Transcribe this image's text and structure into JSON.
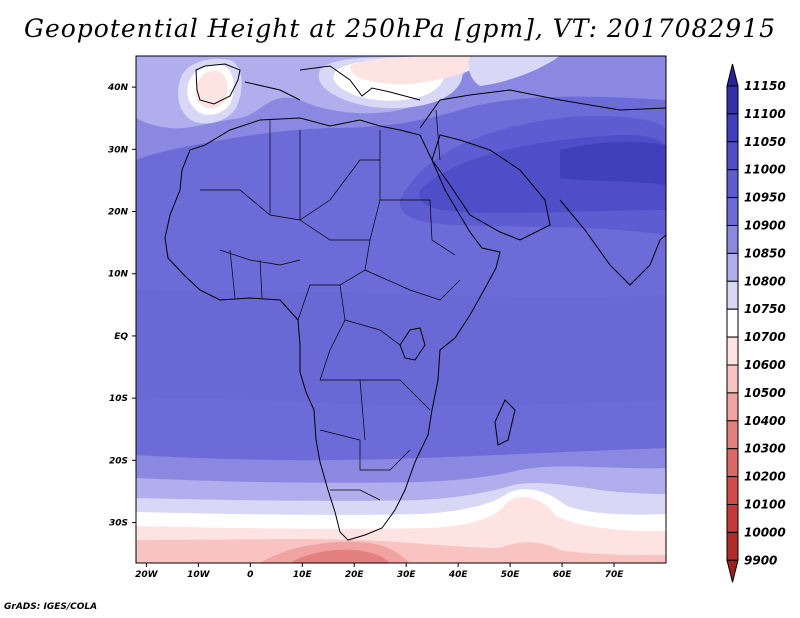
{
  "title": "Geopotential Height at 250hPa [gpm], VT: 2017082915",
  "credit": "GrADS: IGES/COLA",
  "map": {
    "lon_range": [
      -22,
      80
    ],
    "lat_range": [
      -36.5,
      45
    ],
    "lon_ticks": [
      {
        "value": -20,
        "label": "20W"
      },
      {
        "value": -10,
        "label": "10W"
      },
      {
        "value": 0,
        "label": "0"
      },
      {
        "value": 10,
        "label": "10E"
      },
      {
        "value": 20,
        "label": "20E"
      },
      {
        "value": 30,
        "label": "30E"
      },
      {
        "value": 40,
        "label": "40E"
      },
      {
        "value": 50,
        "label": "50E"
      },
      {
        "value": 60,
        "label": "60E"
      },
      {
        "value": 70,
        "label": "70E"
      }
    ],
    "lat_ticks": [
      {
        "value": 40,
        "label": "40N"
      },
      {
        "value": 30,
        "label": "30N"
      },
      {
        "value": 20,
        "label": "20N"
      },
      {
        "value": 10,
        "label": "10N"
      },
      {
        "value": 0,
        "label": "EQ"
      },
      {
        "value": -10,
        "label": "10S"
      },
      {
        "value": -20,
        "label": "20S"
      },
      {
        "value": -30,
        "label": "30S"
      }
    ],
    "colorbar": [
      {
        "label": "11150",
        "color": "#28249a"
      },
      {
        "label": "11100",
        "color": "#3430ac"
      },
      {
        "label": "11050",
        "color": "#4040bd"
      },
      {
        "label": "11000",
        "color": "#4f4ec8"
      },
      {
        "label": "10950",
        "color": "#5e5cd1"
      },
      {
        "label": "10900",
        "color": "#6d6bd7"
      },
      {
        "label": "10850",
        "color": "#8a88e0"
      },
      {
        "label": "10800",
        "color": "#b0aeed"
      },
      {
        "label": "10750",
        "color": "#d8d7f6"
      },
      {
        "label": "10700",
        "color": "#ffffff"
      },
      {
        "label": "10600",
        "color": "#fde4e2"
      },
      {
        "label": "10500",
        "color": "#f8c3c0"
      },
      {
        "label": "10400",
        "color": "#f0a3a0"
      },
      {
        "label": "10300",
        "color": "#e48180"
      },
      {
        "label": "10200",
        "color": "#dc6866"
      },
      {
        "label": "10100",
        "color": "#d24b4a"
      },
      {
        "label": "10000",
        "color": "#c43a38"
      },
      {
        "label": "9900",
        "color": "#b32b29"
      }
    ],
    "colorbar_lower_cap_color": "#9e1f1c"
  }
}
